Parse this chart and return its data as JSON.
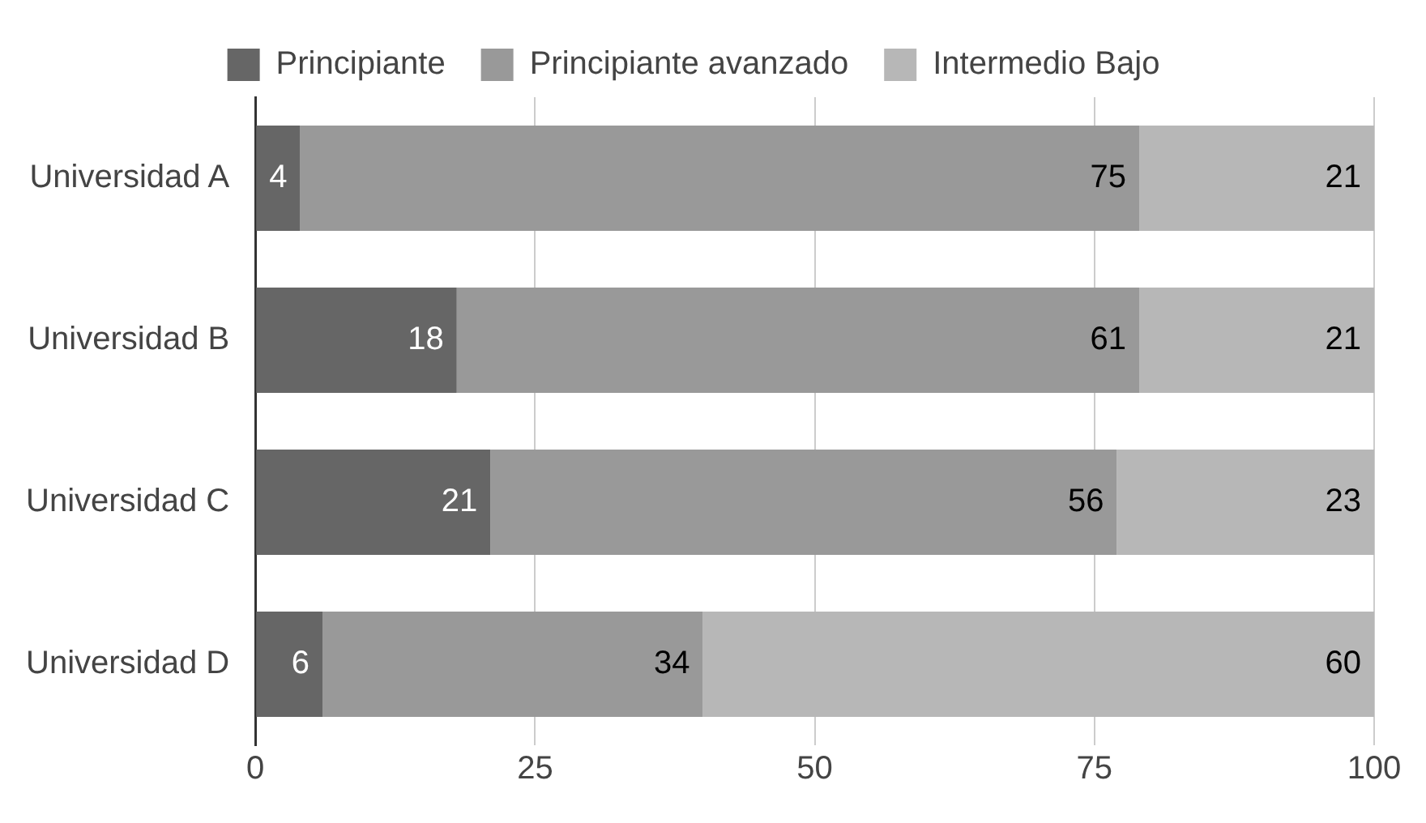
{
  "chart_data": {
    "type": "bar",
    "orientation": "horizontal",
    "stacked": true,
    "categories": [
      "Universidad A",
      "Universidad B",
      "Universidad C",
      "Universidad D"
    ],
    "series": [
      {
        "name": "Principiante",
        "color": "#666666",
        "values": [
          4,
          18,
          21,
          6
        ]
      },
      {
        "name": "Principiante avanzado",
        "color": "#999999",
        "values": [
          75,
          61,
          56,
          34
        ]
      },
      {
        "name": "Intermedio Bajo",
        "color": "#b7b7b7",
        "values": [
          21,
          21,
          23,
          60
        ]
      }
    ],
    "xlim": [
      0,
      100
    ],
    "xticks": [
      0,
      25,
      50,
      75,
      100
    ],
    "grid": "x",
    "legend": "top",
    "data_labels": true
  }
}
